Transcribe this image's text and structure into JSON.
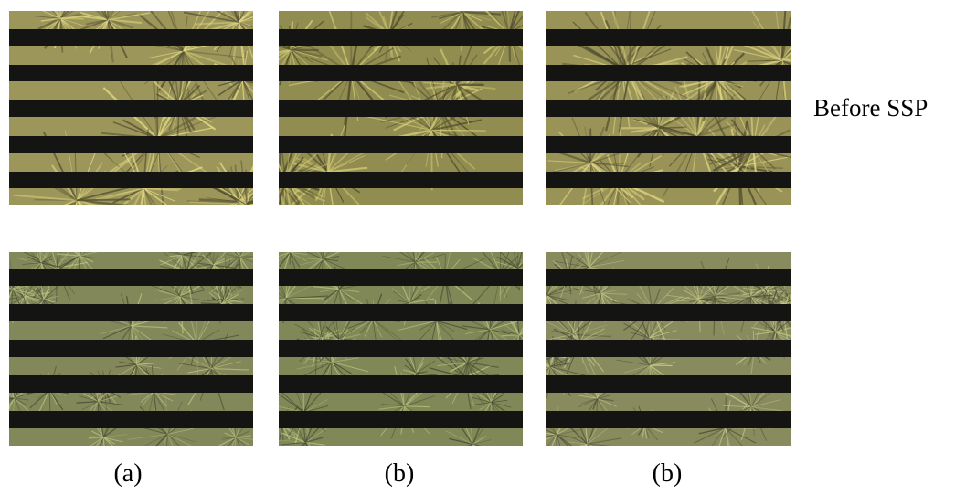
{
  "figure": {
    "row_labels": {
      "before": "Before SSP"
    },
    "captions": [
      "(a)",
      "(b)",
      "(b)"
    ],
    "panels": [
      {
        "row": "before",
        "col": 0,
        "texture": "coarse-spherulites",
        "tint": "#b8b06a"
      },
      {
        "row": "before",
        "col": 1,
        "texture": "coarse-spherulites",
        "tint": "#aaa55e"
      },
      {
        "row": "before",
        "col": 2,
        "texture": "coarse-spherulites",
        "tint": "#b4ad68"
      },
      {
        "row": "after",
        "col": 0,
        "texture": "fine-spherulites",
        "tint": "#9aa06a"
      },
      {
        "row": "after",
        "col": 1,
        "texture": "fine-spherulites",
        "tint": "#98a068"
      },
      {
        "row": "after",
        "col": 2,
        "texture": "fine-spherulites",
        "tint": "#a0a46e"
      }
    ],
    "colors": {
      "stripe": "#141412",
      "background": "#ffffff"
    }
  }
}
